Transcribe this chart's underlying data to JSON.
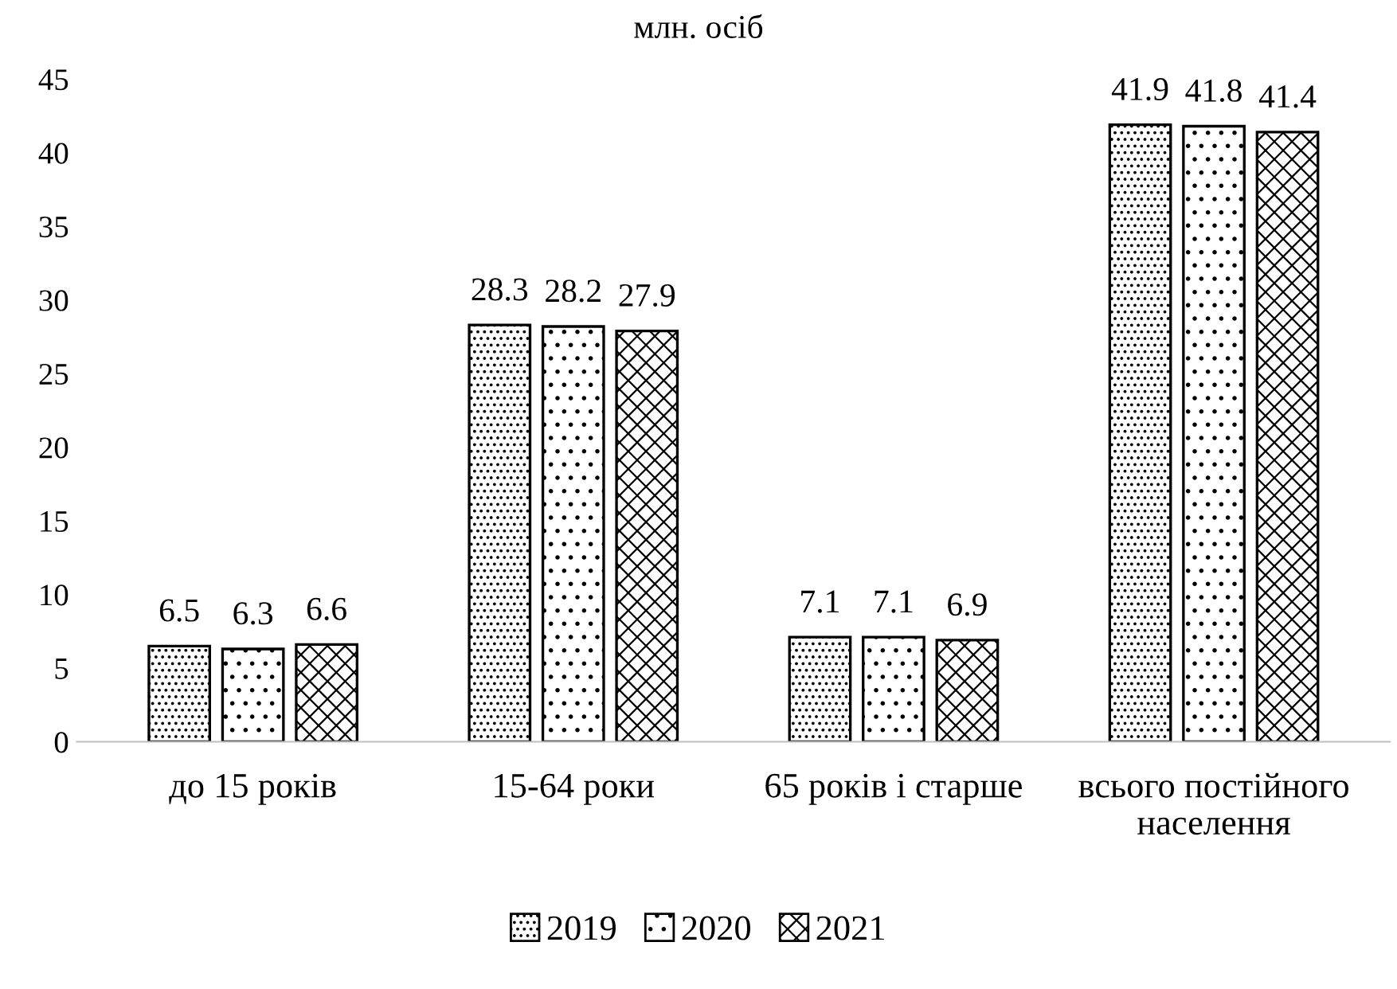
{
  "chart_data": {
    "type": "bar",
    "title": "млн. осіб",
    "categories": [
      "до 15 років",
      "15-64 роки",
      "65 років і старше",
      "всього постійного\nнаселення"
    ],
    "series": [
      {
        "name": "2019",
        "color": "#000000",
        "values": [
          6.5,
          28.3,
          7.1,
          41.9
        ]
      },
      {
        "name": "2020",
        "color": "#000000",
        "values": [
          6.3,
          28.2,
          7.1,
          41.8
        ]
      },
      {
        "name": "2021",
        "color": "#000000",
        "values": [
          6.6,
          27.9,
          6.9,
          41.4
        ]
      }
    ],
    "ylim": [
      0,
      45
    ],
    "yticks": [
      0,
      5,
      10,
      15,
      20,
      25,
      30,
      35,
      40,
      45
    ],
    "data_labels": true,
    "grid": false,
    "legend": "bottom"
  }
}
